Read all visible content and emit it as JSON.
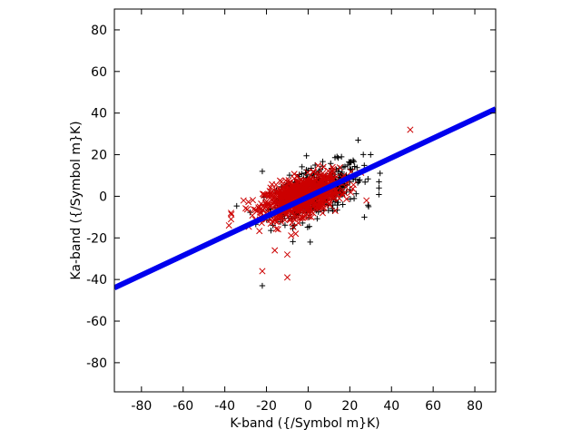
{
  "chart_data": {
    "type": "scatter",
    "xlabel": "K-band ({/Symbol m}K)",
    "ylabel": "Ka-band ({/Symbol m}K)",
    "xlim": [
      -93,
      90
    ],
    "ylim": [
      -94,
      90
    ],
    "xticks": [
      -80,
      -60,
      -40,
      -20,
      0,
      20,
      40,
      60,
      80
    ],
    "yticks": [
      -80,
      -60,
      -40,
      -20,
      0,
      20,
      40,
      60,
      80
    ],
    "xtick_labels": [
      "-80",
      "-60",
      "-40",
      "-20",
      "0",
      "20",
      "40",
      "60",
      "80"
    ],
    "ytick_labels": [
      "-80",
      "-60",
      "-40",
      "-20",
      "0",
      "20",
      "40",
      "60",
      "80"
    ],
    "grid": false,
    "series": [
      {
        "marker": "plus",
        "color": "#000000",
        "cloud": {
          "count": 420,
          "center": [
            4,
            2
          ],
          "sd": [
            11,
            7
          ],
          "corr": 0.55
        },
        "points": [
          [
            -22,
            -43
          ],
          [
            -22,
            12
          ],
          [
            27,
            -10
          ],
          [
            24,
            27
          ],
          [
            30,
            20
          ],
          [
            34,
            7
          ],
          [
            34,
            4
          ],
          [
            29,
            -5
          ],
          [
            1,
            -22
          ],
          [
            -8,
            -11
          ],
          [
            16,
            19
          ],
          [
            19,
            15
          ]
        ]
      },
      {
        "marker": "cross",
        "color": "#cc0000",
        "cloud": {
          "count": 900,
          "center": [
            -3,
            0
          ],
          "sd": [
            9,
            5
          ],
          "corr": 0.5
        },
        "points": [
          [
            -22,
            -36
          ],
          [
            -10,
            -39
          ],
          [
            -10,
            -28
          ],
          [
            49,
            32
          ],
          [
            -37,
            -8
          ],
          [
            -37,
            -11
          ],
          [
            -38,
            -14
          ],
          [
            -31,
            -2
          ],
          [
            -16,
            -26
          ],
          [
            -6,
            -18
          ],
          [
            28,
            -2
          ],
          [
            13,
            -7
          ]
        ]
      },
      {
        "type": "line",
        "color": "#0000ee",
        "x": [
          -93,
          90
        ],
        "y": [
          -44,
          42
        ]
      }
    ]
  }
}
